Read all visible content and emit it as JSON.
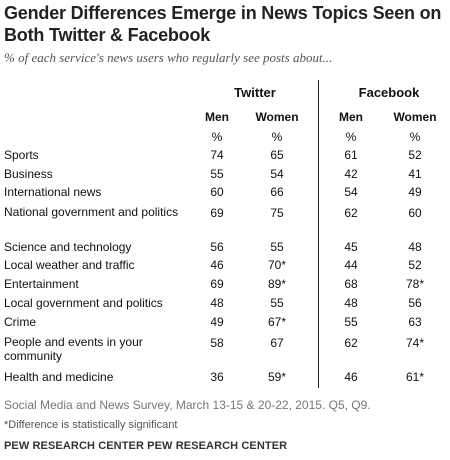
{
  "title": "Gender Differences Emerge in News Topics Seen on Both Twitter & Facebook",
  "subtitle": "% of each service's news users who regularly see posts about...",
  "chart_data": {
    "type": "table",
    "services": [
      "Twitter",
      "Facebook"
    ],
    "columns": [
      {
        "service": "Twitter",
        "label": "Men",
        "unit": "%"
      },
      {
        "service": "Twitter",
        "label": "Women",
        "unit": "%"
      },
      {
        "service": "Facebook",
        "label": "Men",
        "unit": "%"
      },
      {
        "service": "Facebook",
        "label": "Women",
        "unit": "%"
      }
    ],
    "rows": [
      {
        "label": "Sports",
        "values": [
          "74",
          "65",
          "61",
          "52"
        ]
      },
      {
        "label": "Business",
        "values": [
          "55",
          "54",
          "42",
          "41"
        ]
      },
      {
        "label": "International news",
        "values": [
          "60",
          "66",
          "54",
          "49"
        ]
      },
      {
        "label": "National government and politics",
        "values": [
          "69",
          "75",
          "62",
          "60"
        ]
      },
      {
        "label": "Science and technology",
        "values": [
          "56",
          "55",
          "45",
          "48"
        ]
      },
      {
        "label": "Local weather and traffic",
        "values": [
          "46",
          "70*",
          "44",
          "52"
        ]
      },
      {
        "label": "Entertainment",
        "values": [
          "69",
          "89*",
          "68",
          "78*"
        ]
      },
      {
        "label": "Local government and politics",
        "values": [
          "48",
          "55",
          "48",
          "56"
        ]
      },
      {
        "label": "Crime",
        "values": [
          "49",
          "67*",
          "55",
          "63"
        ]
      },
      {
        "label": "People and events in your community",
        "values": [
          "58",
          "67",
          "62",
          "74*"
        ]
      },
      {
        "label": "Health and medicine",
        "values": [
          "36",
          "59*",
          "46",
          "61*"
        ]
      }
    ]
  },
  "source": "Social Media and News Survey, March 13-15 & 20-22, 2015. Q5, Q9.",
  "note": "*Difference is statistically significant",
  "org": "PEW RESEARCH CENTER PEW RESEARCH CENTER"
}
